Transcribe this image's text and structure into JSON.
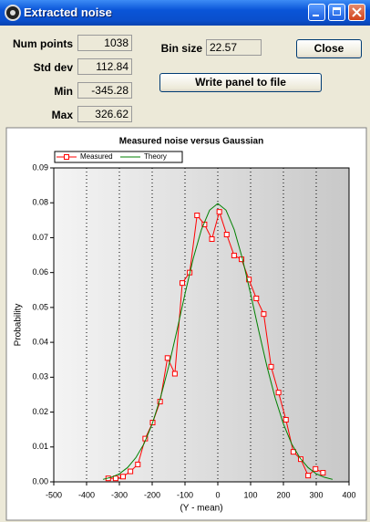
{
  "window": {
    "title": "Extracted noise"
  },
  "fields": [
    {
      "label": "Num points",
      "value": 1038
    },
    {
      "label": "Std dev",
      "value": 112.84
    },
    {
      "label": "Min",
      "value": -345.28
    },
    {
      "label": "Max",
      "value": 326.62
    },
    {
      "label": "Bin size",
      "value": 22.57
    }
  ],
  "buttons": [
    "Close",
    "Write panel to file"
  ],
  "chart_data": {
    "type": "line",
    "title": "Measured noise versus Gaussian",
    "x_label": "(Y - mean)",
    "y_label": "Probability",
    "xlim": [
      -500,
      400
    ],
    "xticks": [
      -500,
      -400,
      -300,
      -200,
      -100,
      0,
      100,
      200,
      300,
      400
    ],
    "ylim": [
      0,
      0.09
    ],
    "yticks": [
      {
        "value": 0,
        "label": "0.00"
      },
      0.01,
      0.02,
      0.03,
      0.04,
      0.05,
      0.06,
      0.07,
      0.08,
      0.09
    ],
    "grid": "x",
    "legend": "top-left",
    "series": [
      {
        "name": "Measured",
        "color": "#ff0000",
        "marker": "square",
        "x": [
          -334.0,
          -311.4,
          -288.9,
          -266.3,
          -243.7,
          -221.2,
          -198.6,
          -176.0,
          -153.4,
          -130.9,
          -108.3,
          -85.7,
          -63.2,
          -40.6,
          -18.0,
          4.6,
          27.1,
          49.7,
          72.3,
          94.8,
          117.4,
          140.0,
          162.5,
          185.1,
          207.7,
          230.2,
          252.8,
          275.4,
          297.9,
          320.5
        ],
        "values": [
          0.001,
          0.001,
          0.0015,
          0.003,
          0.005,
          0.0124,
          0.017,
          0.023,
          0.0355,
          0.031,
          0.057,
          0.06,
          0.0764,
          0.0738,
          0.0696,
          0.0774,
          0.0709,
          0.0649,
          0.0638,
          0.058,
          0.0526,
          0.0481,
          0.033,
          0.0256,
          0.0178,
          0.0086,
          0.0065,
          0.0018,
          0.0037,
          0.0026
        ]
      },
      {
        "name": "Theory",
        "color": "#008000",
        "marker": "none",
        "x": [
          -350,
          -325,
          -300,
          -275,
          -250,
          -225,
          -200,
          -175,
          -150,
          -125,
          -100,
          -75,
          -50,
          -25,
          0,
          25,
          50,
          75,
          100,
          125,
          150,
          175,
          200,
          225,
          250,
          275,
          300,
          325,
          350
        ],
        "values": [
          0.0007,
          0.0013,
          0.0023,
          0.0041,
          0.0069,
          0.0109,
          0.0166,
          0.024,
          0.033,
          0.0432,
          0.0539,
          0.064,
          0.0723,
          0.0779,
          0.0798,
          0.0779,
          0.0723,
          0.064,
          0.0539,
          0.0432,
          0.033,
          0.024,
          0.0166,
          0.0109,
          0.0069,
          0.0041,
          0.0023,
          0.0013,
          0.0007
        ]
      }
    ]
  }
}
